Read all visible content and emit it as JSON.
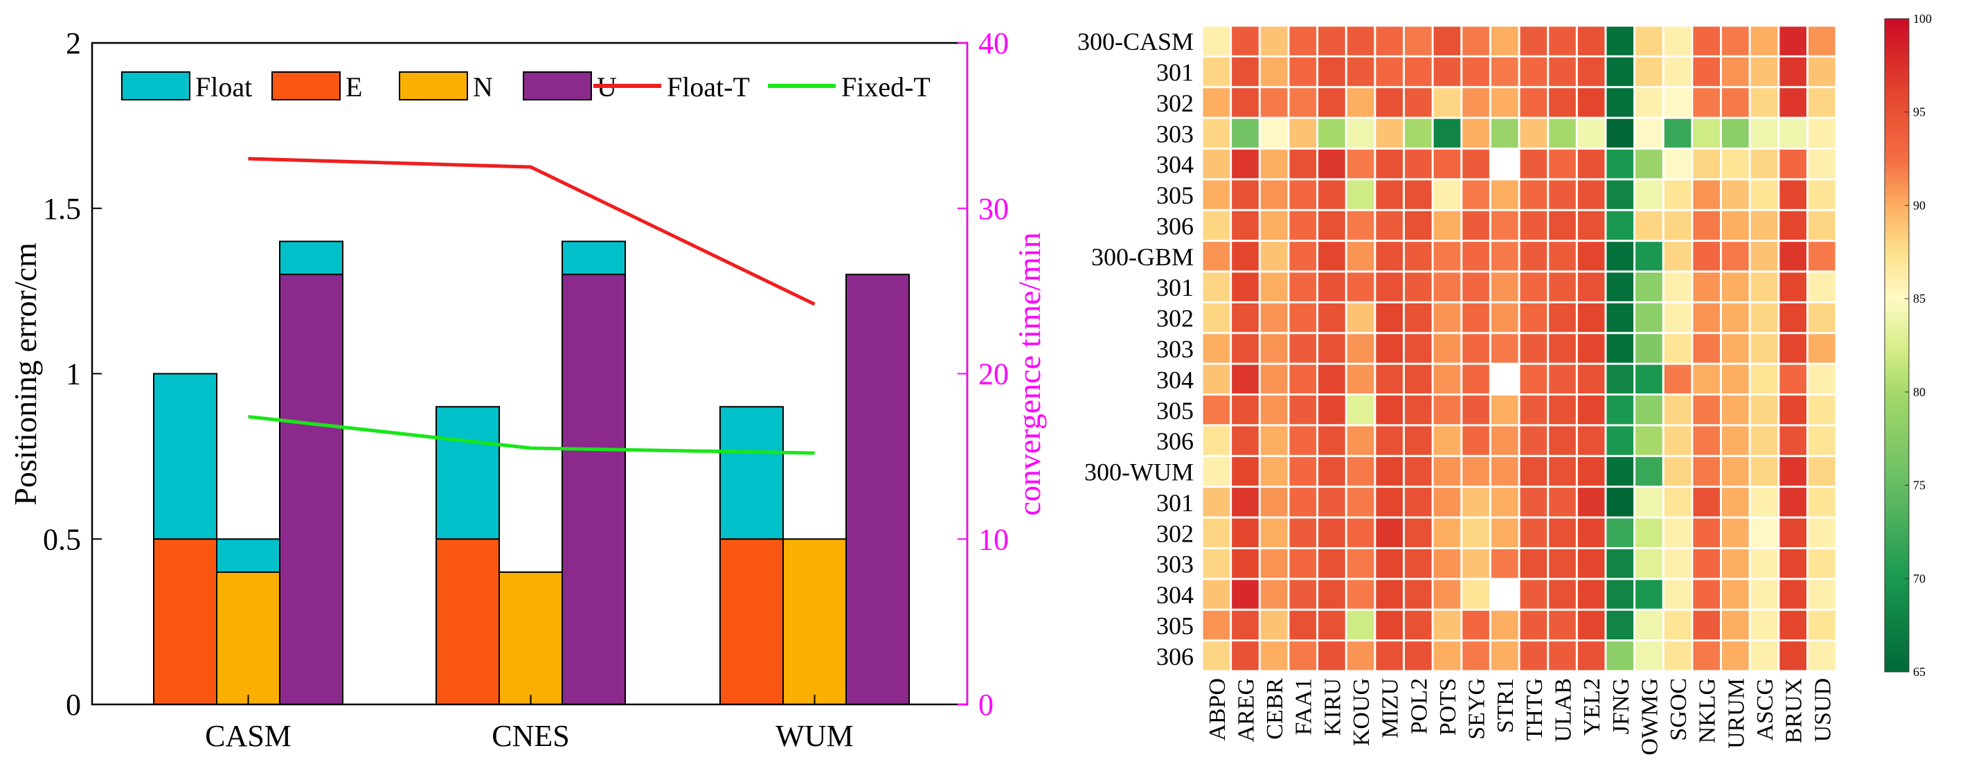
{
  "chart_data": [
    {
      "type": "bar",
      "subtype": "stacked-bar-with-lines",
      "categories": [
        "CASM",
        "CNES",
        "WUM"
      ],
      "xlabel": "",
      "ylabel": "Positioning error/cm",
      "ylabel_right": "convergence time/min",
      "ylim": [
        0,
        2
      ],
      "yticks": [
        "0",
        "0.5",
        "1",
        "1.5",
        "2"
      ],
      "ylim_right": [
        0,
        40
      ],
      "yticks_right": [
        "0",
        "10",
        "20",
        "30",
        "40"
      ],
      "legend_position": "top",
      "bar_groups": [
        {
          "component": "E",
          "color": "#F95711",
          "values": {
            "base": [
              0.5,
              0.5,
              0.5
            ],
            "float_top": [
              1.0,
              0.9,
              0.9
            ]
          }
        },
        {
          "component": "N",
          "color": "#FBAF00",
          "values": {
            "base": [
              0.4,
              0.4,
              0.5
            ],
            "float_top": [
              0.5,
              0.4,
              0.5
            ]
          }
        },
        {
          "component": "U",
          "color": "#8B2A8C",
          "values": {
            "base": [
              1.3,
              1.3,
              1.3
            ],
            "float_top": [
              1.4,
              1.4,
              1.3
            ]
          }
        }
      ],
      "float_color": "#00C1C9",
      "series": [
        {
          "name": "Float",
          "kind": "bar",
          "color": "#00C1C9"
        },
        {
          "name": "E",
          "kind": "bar",
          "color": "#F95711"
        },
        {
          "name": "N",
          "kind": "bar",
          "color": "#FBAF00"
        },
        {
          "name": "U",
          "kind": "bar",
          "color": "#8B2A8C"
        },
        {
          "name": "Float-T",
          "kind": "line",
          "axis": "right",
          "color": "#F01E1E",
          "values": [
            33.0,
            32.5,
            24.2
          ]
        },
        {
          "name": "Fixed-T",
          "kind": "line",
          "axis": "right",
          "color": "#19E619",
          "values": [
            17.4,
            15.5,
            15.2
          ]
        }
      ],
      "right_axis_color": "#FF00FF"
    },
    {
      "type": "heatmap",
      "rows": [
        "300-CASM",
        "301",
        "302",
        "303",
        "304",
        "305",
        "306",
        "300-GBM",
        "301",
        "302",
        "303",
        "304",
        "305",
        "306",
        "300-WUM",
        "301",
        "302",
        "303",
        "304",
        "305",
        "306"
      ],
      "columns": [
        "ABPO",
        "AREG",
        "CEBR",
        "FAA1",
        "KIRU",
        "KOUG",
        "MIZU",
        "POL2",
        "POTS",
        "SEYG",
        "STR1",
        "THTG",
        "ULAB",
        "YEL2",
        "JFNG",
        "OWMG",
        "SGOC",
        "NKLG",
        "URUM",
        "ASCG",
        "BRUX",
        "USUD"
      ],
      "colorbar": {
        "min": 65,
        "max": 100,
        "ticks": [
          "65",
          "70",
          "75",
          "80",
          "85",
          "90",
          "95",
          "100"
        ]
      },
      "missing_cells": [
        [
          4,
          10
        ],
        [
          11,
          10
        ],
        [
          18,
          10
        ]
      ],
      "values": [
        [
          86,
          94,
          89,
          93,
          94,
          94,
          93,
          92,
          95,
          92,
          90,
          94,
          94,
          95,
          66,
          88,
          86,
          93,
          92,
          90,
          98,
          91
        ],
        [
          88,
          95,
          90,
          93,
          95,
          94,
          93,
          93,
          94,
          93,
          92,
          93,
          94,
          95,
          66,
          88,
          86,
          93,
          91,
          89,
          97,
          89
        ],
        [
          90,
          95,
          92,
          92,
          95,
          90,
          95,
          94,
          88,
          91,
          90,
          93,
          95,
          96,
          66,
          86,
          85,
          92,
          92,
          88,
          97,
          88
        ],
        [
          88,
          76,
          85,
          89,
          80,
          84,
          89,
          80,
          68,
          90,
          79,
          89,
          80,
          84,
          65,
          85,
          72,
          82,
          78,
          84,
          84,
          86
        ],
        [
          89,
          97,
          90,
          95,
          97,
          92,
          95,
          94,
          93,
          94,
          null,
          94,
          93,
          95,
          70,
          79,
          85,
          88,
          87,
          88,
          93,
          86
        ],
        [
          90,
          95,
          91,
          93,
          95,
          82,
          95,
          95,
          86,
          92,
          90,
          93,
          94,
          95,
          68,
          84,
          87,
          91,
          89,
          87,
          96,
          87
        ],
        [
          88,
          95,
          90,
          93,
          95,
          92,
          94,
          95,
          90,
          94,
          92,
          94,
          95,
          95,
          70,
          88,
          88,
          92,
          90,
          89,
          96,
          88
        ],
        [
          91,
          96,
          89,
          93,
          96,
          91,
          95,
          94,
          92,
          93,
          92,
          94,
          94,
          96,
          66,
          70,
          88,
          93,
          92,
          89,
          97,
          92
        ],
        [
          88,
          96,
          90,
          93,
          95,
          93,
          95,
          94,
          92,
          93,
          91,
          93,
          94,
          95,
          66,
          78,
          86,
          91,
          90,
          88,
          96,
          86
        ],
        [
          88,
          95,
          91,
          93,
          95,
          89,
          96,
          95,
          91,
          93,
          91,
          93,
          95,
          96,
          66,
          78,
          86,
          91,
          90,
          88,
          96,
          88
        ],
        [
          90,
          95,
          91,
          94,
          95,
          91,
          96,
          95,
          91,
          93,
          92,
          94,
          95,
          96,
          66,
          77,
          87,
          92,
          90,
          88,
          96,
          90
        ],
        [
          89,
          97,
          91,
          93,
          96,
          91,
          95,
          95,
          91,
          93,
          null,
          93,
          94,
          95,
          68,
          70,
          92,
          90,
          90,
          87,
          93,
          86
        ],
        [
          92,
          95,
          91,
          94,
          96,
          83,
          96,
          95,
          92,
          94,
          90,
          94,
          95,
          96,
          70,
          78,
          88,
          92,
          90,
          88,
          96,
          87
        ],
        [
          87,
          95,
          90,
          93,
          95,
          91,
          95,
          95,
          90,
          93,
          91,
          94,
          95,
          95,
          70,
          80,
          88,
          92,
          90,
          88,
          95,
          87
        ],
        [
          86,
          96,
          90,
          93,
          95,
          92,
          96,
          95,
          91,
          91,
          91,
          95,
          95,
          96,
          66,
          72,
          88,
          92,
          90,
          88,
          97,
          88
        ],
        [
          89,
          97,
          91,
          93,
          94,
          92,
          96,
          95,
          91,
          89,
          90,
          94,
          94,
          97,
          65,
          84,
          87,
          95,
          90,
          86,
          97,
          87
        ],
        [
          88,
          96,
          90,
          94,
          95,
          93,
          97,
          95,
          90,
          88,
          90,
          94,
          95,
          96,
          72,
          82,
          86,
          93,
          90,
          85,
          96,
          86
        ],
        [
          88,
          96,
          91,
          93,
          95,
          92,
          96,
          95,
          91,
          89,
          92,
          95,
          95,
          96,
          68,
          83,
          86,
          93,
          90,
          86,
          96,
          87
        ],
        [
          89,
          98,
          91,
          94,
          95,
          92,
          96,
          95,
          91,
          87,
          null,
          94,
          95,
          96,
          68,
          70,
          86,
          93,
          90,
          86,
          96,
          86
        ],
        [
          91,
          95,
          89,
          95,
          95,
          82,
          96,
          95,
          89,
          93,
          90,
          94,
          94,
          96,
          68,
          84,
          87,
          94,
          90,
          86,
          96,
          87
        ],
        [
          88,
          95,
          90,
          92,
          95,
          91,
          95,
          95,
          90,
          92,
          90,
          94,
          94,
          95,
          78,
          84,
          87,
          92,
          90,
          86,
          96,
          86
        ]
      ]
    }
  ]
}
